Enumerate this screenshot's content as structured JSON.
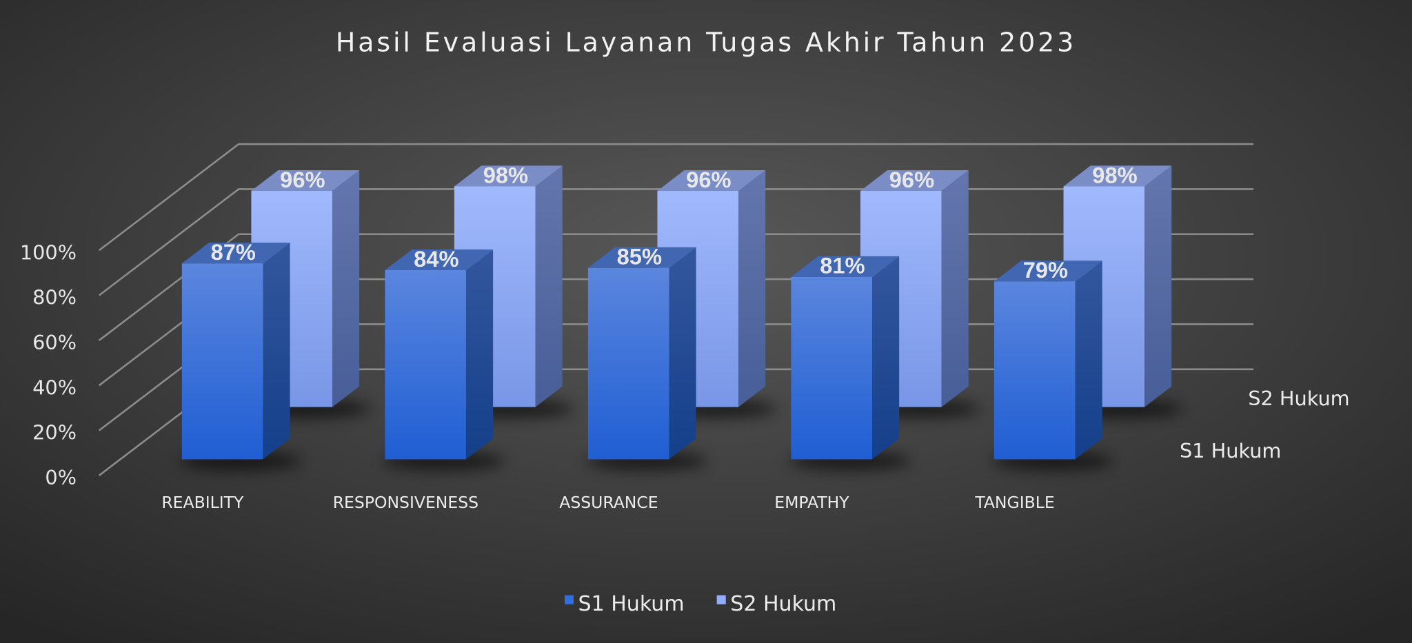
{
  "chart_data": {
    "type": "bar",
    "style": "3d-clustered-column",
    "title": "Hasil Evaluasi Layanan Tugas Akhir Tahun 2023",
    "categories": [
      "REABILITY",
      "RESPONSIVENESS",
      "ASSURANCE",
      "EMPATHY",
      "TANGIBLE"
    ],
    "series": [
      {
        "name": "S1 Hukum",
        "values": [
          87,
          84,
          85,
          81,
          79
        ],
        "labels": [
          "87%",
          "84%",
          "85%",
          "81%",
          "79%"
        ],
        "color": "#2f6fe0"
      },
      {
        "name": "S2 Hukum",
        "values": [
          96,
          98,
          96,
          96,
          98
        ],
        "labels": [
          "96%",
          "98%",
          "96%",
          "96%",
          "98%"
        ],
        "color": "#93adfa"
      }
    ],
    "ylim": [
      0,
      100
    ],
    "yticks": [
      "0%",
      "20%",
      "40%",
      "60%",
      "80%",
      "100%"
    ],
    "grid": true,
    "legend": "bottom",
    "background": "#444444"
  }
}
